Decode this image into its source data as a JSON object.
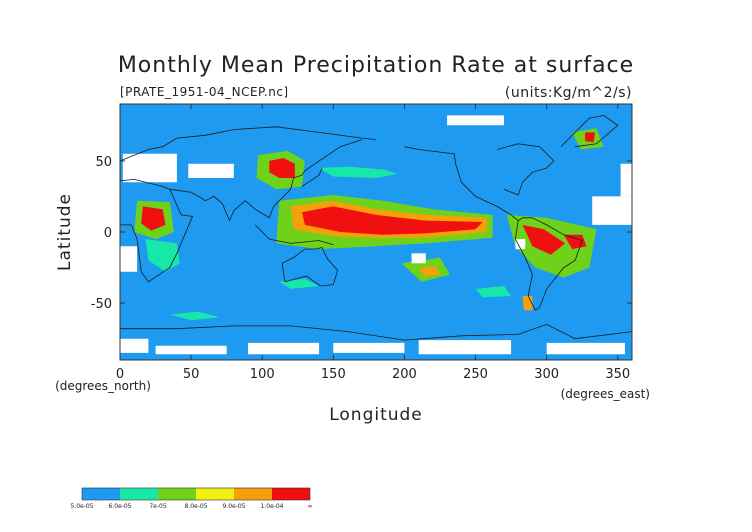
{
  "chart_data": {
    "type": "heatmap",
    "title": "Monthly Mean Precipitation Rate at surface",
    "subtitle": "[PRATE_1951-04_NCEP.nc]",
    "units": "(units:Kg/m^2/s)",
    "xlabel": "Longitude",
    "ylabel": "Latitude",
    "x_unit_label": "(degrees_east)",
    "y_unit_label": "(degrees_north)",
    "xlim": [
      0,
      360
    ],
    "ylim": [
      -90,
      90
    ],
    "x_ticks": [
      0,
      50,
      100,
      150,
      200,
      250,
      300,
      350
    ],
    "y_ticks": [
      -50,
      0,
      50
    ],
    "colorbar": {
      "levels": [
        "5.0e-05",
        "6.0e-05",
        "7e-05",
        "8.0e-05",
        "9.0e-05",
        "1.0e-04",
        "∞"
      ],
      "colors": [
        "#1e9bf0",
        "#17e8a8",
        "#6fd21a",
        "#f0f014",
        "#f5a00a",
        "#f01010"
      ]
    },
    "background_color": "#1e9bf0",
    "regions": [
      {
        "level": 5,
        "points": [
          [
            128,
            14
          ],
          [
            150,
            18
          ],
          [
            180,
            12
          ],
          [
            215,
            8
          ],
          [
            255,
            7
          ],
          [
            250,
            2
          ],
          [
            215,
            -1
          ],
          [
            185,
            -2
          ],
          [
            155,
            0
          ],
          [
            130,
            5
          ]
        ]
      },
      {
        "level": 4,
        "points": [
          [
            120,
            18
          ],
          [
            150,
            22
          ],
          [
            180,
            16
          ],
          [
            215,
            12
          ],
          [
            258,
            10
          ],
          [
            258,
            0
          ],
          [
            215,
            -4
          ],
          [
            180,
            -4
          ],
          [
            150,
            -3
          ],
          [
            122,
            2
          ]
        ]
      },
      {
        "level": 2,
        "points": [
          [
            112,
            22
          ],
          [
            150,
            26
          ],
          [
            185,
            22
          ],
          [
            220,
            16
          ],
          [
            262,
            12
          ],
          [
            262,
            -4
          ],
          [
            215,
            -8
          ],
          [
            180,
            -10
          ],
          [
            140,
            -12
          ],
          [
            110,
            -8
          ]
        ]
      },
      {
        "level": 5,
        "points": [
          [
            105,
            50
          ],
          [
            115,
            52
          ],
          [
            123,
            48
          ],
          [
            123,
            38
          ],
          [
            112,
            38
          ],
          [
            105,
            42
          ]
        ]
      },
      {
        "level": 2,
        "points": [
          [
            97,
            54
          ],
          [
            118,
            57
          ],
          [
            130,
            50
          ],
          [
            128,
            32
          ],
          [
            110,
            30
          ],
          [
            96,
            38
          ]
        ]
      },
      {
        "level": 1,
        "points": [
          [
            140,
            45
          ],
          [
            160,
            46
          ],
          [
            185,
            44
          ],
          [
            195,
            41
          ],
          [
            180,
            38
          ],
          [
            150,
            39
          ]
        ]
      },
      {
        "level": 5,
        "points": [
          [
            16,
            18
          ],
          [
            30,
            16
          ],
          [
            32,
            5
          ],
          [
            22,
            1
          ],
          [
            15,
            6
          ]
        ]
      },
      {
        "level": 2,
        "points": [
          [
            12,
            22
          ],
          [
            35,
            21
          ],
          [
            38,
            0
          ],
          [
            25,
            -5
          ],
          [
            10,
            0
          ]
        ]
      },
      {
        "level": 1,
        "points": [
          [
            18,
            -5
          ],
          [
            40,
            -8
          ],
          [
            42,
            -22
          ],
          [
            32,
            -28
          ],
          [
            20,
            -20
          ]
        ]
      },
      {
        "level": 5,
        "points": [
          [
            283,
            5
          ],
          [
            298,
            2
          ],
          [
            313,
            -8
          ],
          [
            303,
            -16
          ],
          [
            290,
            -10
          ]
        ]
      },
      {
        "level": 5,
        "points": [
          [
            312,
            -2
          ],
          [
            325,
            -2
          ],
          [
            328,
            -10
          ],
          [
            318,
            -12
          ]
        ]
      },
      {
        "level": 2,
        "points": [
          [
            272,
            12
          ],
          [
            300,
            10
          ],
          [
            335,
            2
          ],
          [
            330,
            -25
          ],
          [
            312,
            -32
          ],
          [
            292,
            -25
          ],
          [
            278,
            -10
          ]
        ]
      },
      {
        "level": 2,
        "points": [
          [
            198,
            -22
          ],
          [
            225,
            -18
          ],
          [
            232,
            -30
          ],
          [
            212,
            -35
          ]
        ]
      },
      {
        "level": 4,
        "points": [
          [
            210,
            -25
          ],
          [
            222,
            -24
          ],
          [
            225,
            -30
          ],
          [
            214,
            -31
          ]
        ]
      },
      {
        "level": 4,
        "points": [
          [
            283,
            -45
          ],
          [
            290,
            -45
          ],
          [
            290,
            -55
          ],
          [
            284,
            -55
          ]
        ]
      },
      {
        "level": 5,
        "points": [
          [
            327,
            70
          ],
          [
            334,
            70
          ],
          [
            333,
            63
          ],
          [
            327,
            64
          ]
        ]
      },
      {
        "level": 2,
        "points": [
          [
            318,
            70
          ],
          [
            335,
            73
          ],
          [
            340,
            60
          ],
          [
            324,
            58
          ]
        ]
      },
      {
        "level": 1,
        "points": [
          [
            35,
            -58
          ],
          [
            55,
            -56
          ],
          [
            70,
            -60
          ],
          [
            50,
            -62
          ]
        ]
      },
      {
        "level": 1,
        "points": [
          [
            112,
            -35
          ],
          [
            130,
            -33
          ],
          [
            140,
            -38
          ],
          [
            120,
            -40
          ]
        ]
      },
      {
        "level": 1,
        "points": [
          [
            250,
            -40
          ],
          [
            270,
            -38
          ],
          [
            275,
            -45
          ],
          [
            255,
            -46
          ]
        ]
      }
    ],
    "missing_regions": [
      [
        [
          2,
          55
        ],
        [
          40,
          55
        ],
        [
          40,
          35
        ],
        [
          2,
          35
        ]
      ],
      [
        [
          48,
          48
        ],
        [
          80,
          48
        ],
        [
          80,
          38
        ],
        [
          48,
          38
        ]
      ],
      [
        [
          0,
          -10
        ],
        [
          12,
          -10
        ],
        [
          12,
          -28
        ],
        [
          0,
          -28
        ]
      ],
      [
        [
          0,
          -75
        ],
        [
          20,
          -75
        ],
        [
          20,
          -85
        ],
        [
          0,
          -85
        ]
      ],
      [
        [
          25,
          -80
        ],
        [
          75,
          -80
        ],
        [
          75,
          -86
        ],
        [
          25,
          -86
        ]
      ],
      [
        [
          90,
          -78
        ],
        [
          140,
          -78
        ],
        [
          140,
          -86
        ],
        [
          90,
          -86
        ]
      ],
      [
        [
          150,
          -78
        ],
        [
          200,
          -78
        ],
        [
          200,
          -85
        ],
        [
          150,
          -85
        ]
      ],
      [
        [
          210,
          -76
        ],
        [
          275,
          -76
        ],
        [
          275,
          -86
        ],
        [
          210,
          -86
        ]
      ],
      [
        [
          300,
          -78
        ],
        [
          355,
          -78
        ],
        [
          355,
          -86
        ],
        [
          300,
          -86
        ]
      ],
      [
        [
          332,
          25
        ],
        [
          360,
          25
        ],
        [
          360,
          5
        ],
        [
          332,
          5
        ]
      ],
      [
        [
          352,
          48
        ],
        [
          360,
          48
        ],
        [
          360,
          25
        ],
        [
          352,
          25
        ]
      ],
      [
        [
          230,
          82
        ],
        [
          270,
          82
        ],
        [
          270,
          75
        ],
        [
          230,
          75
        ]
      ],
      [
        [
          205,
          -15
        ],
        [
          215,
          -15
        ],
        [
          215,
          -22
        ],
        [
          205,
          -22
        ]
      ],
      [
        [
          278,
          -5
        ],
        [
          285,
          -5
        ],
        [
          285,
          -12
        ],
        [
          278,
          -12
        ]
      ]
    ]
  }
}
